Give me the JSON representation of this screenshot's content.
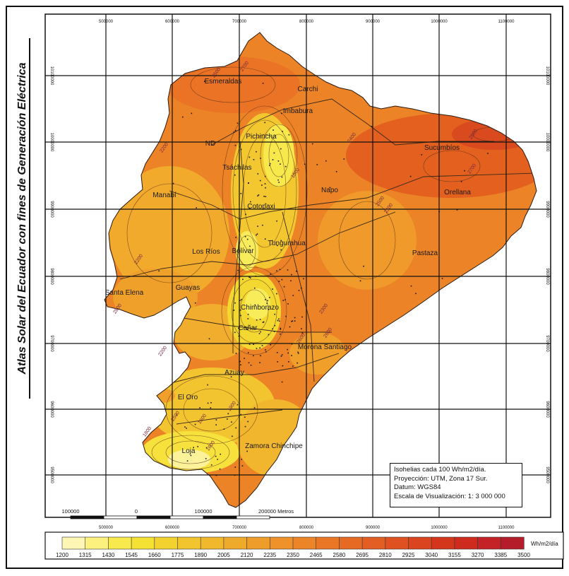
{
  "side_title": "Atlas Solar del Ecuador con fines de Generación Eléctrica",
  "grid": {
    "x_labels": [
      "500000",
      "600000",
      "700000",
      "800000",
      "900000",
      "1000000",
      "1100000"
    ],
    "y_labels": [
      "10100000",
      "10000000",
      "9900000",
      "9800000",
      "9700000",
      "9600000",
      "9500000"
    ]
  },
  "provinces": [
    "Esmeraldas",
    "Carchi",
    "Imbabura",
    "Pichincha",
    "ND",
    "Tsáchilas",
    "Sucumbíos",
    "Manabí",
    "Napo",
    "Orellana",
    "Cotopaxi",
    "Los Ríos",
    "Bolívar",
    "Tungurahua",
    "Pastaza",
    "Santa Elena",
    "Guayas",
    "Chimborazo",
    "Cañar",
    "Morona Santiago",
    "Azuay",
    "El Oro",
    "Loja",
    "Zamora Chinchipe"
  ],
  "isoline_labels": [
    "2500",
    "2700",
    "2800",
    "2200",
    "2400",
    "2700",
    "1800",
    "2500",
    "2300",
    "2300",
    "2600",
    "2200",
    "2200",
    "2800",
    "2500",
    "2600",
    "1600",
    "1800",
    "1900",
    "1600"
  ],
  "info_box": {
    "line1": "Isohelias cada  100 Wh/m2/día.",
    "line2": "Proyección: UTM, Zona 17 Sur.",
    "line3": "Datum: WGS84",
    "line4": "Escala de Visualización: 1: 3 000 000"
  },
  "scale_bar": {
    "labels": [
      "100000",
      "0",
      "100000",
      "200000 Metros"
    ]
  },
  "legend": {
    "unit": "Wh/m2/día",
    "breaks": [
      "1200",
      "1315",
      "1430",
      "1545",
      "1660",
      "1775",
      "1890",
      "2005",
      "2120",
      "2235",
      "2350",
      "2465",
      "2580",
      "2695",
      "2810",
      "2925",
      "3040",
      "3155",
      "3270",
      "3385",
      "3500"
    ],
    "colors": [
      "#fdf6b4",
      "#fcf07f",
      "#f8ea4c",
      "#f4e133",
      "#f3d230",
      "#f2c52e",
      "#f1b82d",
      "#f0aa2b",
      "#ef9d2a",
      "#ee9229",
      "#ec8528",
      "#ea7726",
      "#e76a24",
      "#e35e22",
      "#df5120",
      "#da441e",
      "#d4361c",
      "#ce2b1e",
      "#c42226",
      "#b51d2b"
    ]
  }
}
